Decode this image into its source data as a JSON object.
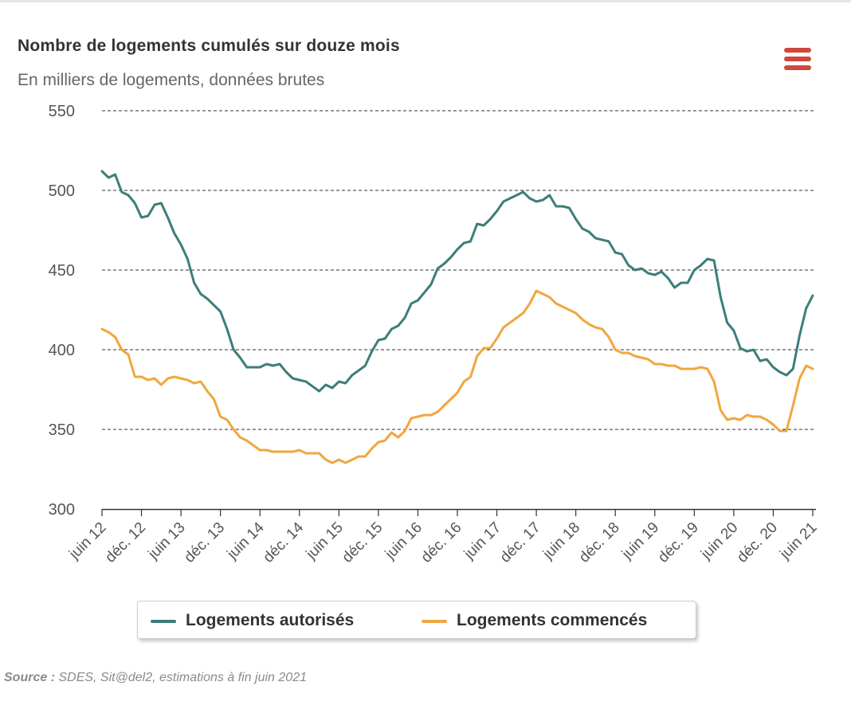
{
  "header": {
    "title": "Nombre de logements cumulés sur douze mois",
    "subtitle": "En milliers de logements, données brutes",
    "menu_icon": "hamburger-menu-icon"
  },
  "colors": {
    "autorises": "#3c7e7a",
    "commences": "#f0a73f",
    "grid": "#333333",
    "menu": "#d0473c"
  },
  "footer": {
    "source_label": "Source :",
    "source_text": "SDES, Sit@del2, estimations à fin juin 2021"
  },
  "chart_data": {
    "type": "line",
    "title": "Nombre de logements cumulés sur douze mois",
    "subtitle": "En milliers de logements, données brutes",
    "ylim": [
      300,
      550
    ],
    "yticks": [
      300,
      350,
      400,
      450,
      500,
      550
    ],
    "grid": true,
    "legend_position": "bottom-center",
    "x_start": "2012-06",
    "x_end": "2021-06",
    "x_tick_labels": [
      "juin 12",
      "déc. 12",
      "juin 13",
      "déc. 13",
      "juin 14",
      "déc. 14",
      "juin 15",
      "déc. 15",
      "juin 16",
      "déc. 16",
      "juin 17",
      "déc. 17",
      "juin 18",
      "déc. 18",
      "juin 19",
      "déc. 19",
      "juin 20",
      "déc. 20",
      "juin 21"
    ],
    "series": [
      {
        "name": "Logements autorisés",
        "color": "#3c7e7a",
        "values": [
          512,
          508,
          510,
          499,
          497,
          492,
          483,
          484,
          491,
          492,
          483,
          473,
          466,
          457,
          442,
          435,
          432,
          428,
          424,
          413,
          400,
          395,
          389,
          389,
          389,
          391,
          390,
          391,
          386,
          382,
          381,
          380,
          377,
          374,
          378,
          376,
          380,
          379,
          384,
          387,
          390,
          399,
          406,
          407,
          413,
          415,
          420,
          429,
          431,
          436,
          441,
          451,
          454,
          458,
          463,
          467,
          468,
          479,
          478,
          482,
          487,
          493,
          495,
          497,
          499,
          495,
          493,
          494,
          497,
          490,
          490,
          489,
          482,
          476,
          474,
          470,
          469,
          468,
          461,
          460,
          453,
          450,
          451,
          448,
          447,
          449,
          445,
          439,
          442,
          442,
          450,
          453,
          457,
          456,
          433,
          417,
          412,
          401,
          399,
          400,
          393,
          394,
          389,
          386,
          384,
          388,
          409,
          426,
          434
        ]
      },
      {
        "name": "Logements commencés",
        "color": "#f0a73f",
        "values": [
          413,
          411,
          408,
          400,
          397,
          383,
          383,
          381,
          382,
          378,
          382,
          383,
          382,
          381,
          379,
          380,
          374,
          369,
          358,
          356,
          350,
          345,
          343,
          340,
          337,
          337,
          336,
          336,
          336,
          336,
          337,
          335,
          335,
          335,
          331,
          329,
          331,
          329,
          331,
          333,
          333,
          338,
          342,
          343,
          348,
          345,
          349,
          357,
          358,
          359,
          359,
          361,
          365,
          369,
          373,
          380,
          383,
          396,
          401,
          401,
          407,
          414,
          417,
          420,
          423,
          429,
          437,
          435,
          433,
          429,
          427,
          425,
          423,
          419,
          416,
          414,
          413,
          408,
          400,
          398,
          398,
          396,
          395,
          394,
          391,
          391,
          390,
          390,
          388,
          388,
          388,
          389,
          388,
          380,
          362,
          356,
          357,
          356,
          359,
          358,
          358,
          356,
          353,
          349,
          349,
          365,
          382,
          390,
          388
        ]
      }
    ]
  }
}
